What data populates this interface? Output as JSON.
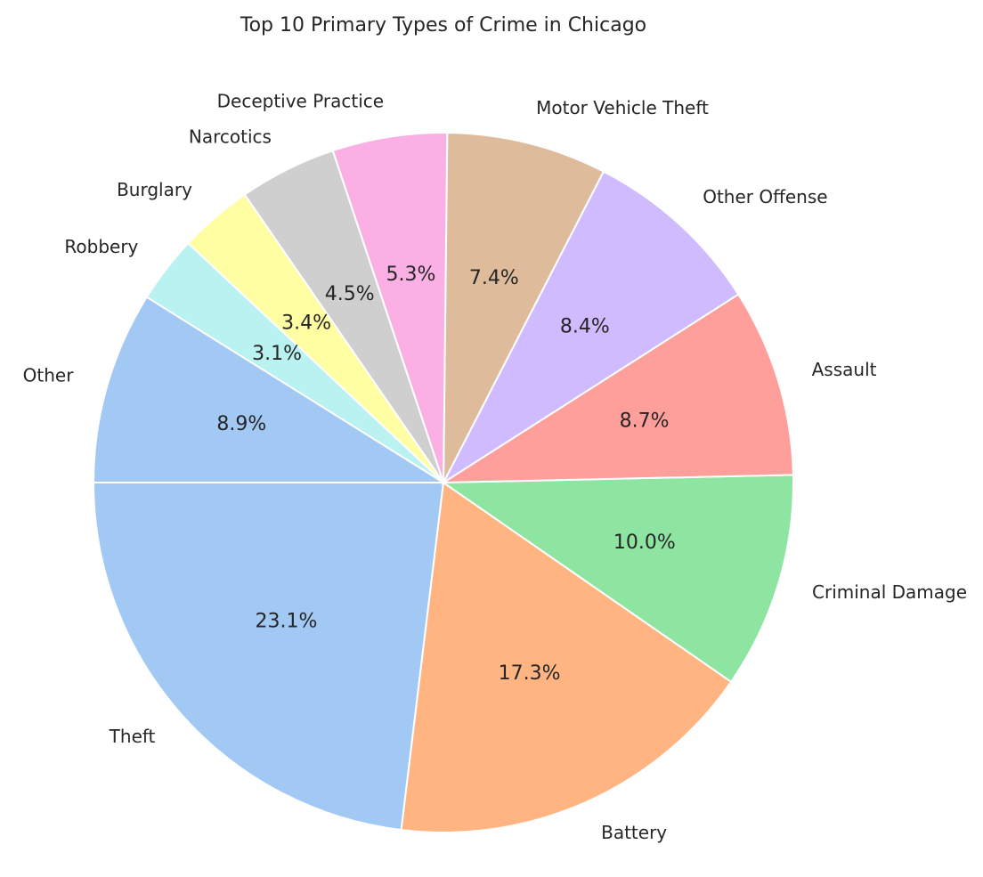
{
  "chart_data": {
    "type": "pie",
    "title": "Top 10 Primary Types of Crime in Chicago",
    "start_angle_deg": 180,
    "direction": "counterclockwise",
    "slices": [
      {
        "label": "Theft",
        "value": 23.1,
        "pct_label": "23.1%",
        "color": "#a1c9f4"
      },
      {
        "label": "Battery",
        "value": 17.3,
        "pct_label": "17.3%",
        "color": "#ffb482"
      },
      {
        "label": "Criminal Damage",
        "value": 10.0,
        "pct_label": "10.0%",
        "color": "#8de5a1"
      },
      {
        "label": "Assault",
        "value": 8.7,
        "pct_label": "8.7%",
        "color": "#ff9f9b"
      },
      {
        "label": "Other Offense",
        "value": 8.4,
        "pct_label": "8.4%",
        "color": "#d0bbff"
      },
      {
        "label": "Motor Vehicle Theft",
        "value": 7.4,
        "pct_label": "7.4%",
        "color": "#debb9b"
      },
      {
        "label": "Deceptive Practice",
        "value": 5.3,
        "pct_label": "5.3%",
        "color": "#fab0e4"
      },
      {
        "label": "Narcotics",
        "value": 4.5,
        "pct_label": "4.5%",
        "color": "#cfcfcf"
      },
      {
        "label": "Burglary",
        "value": 3.4,
        "pct_label": "3.4%",
        "color": "#fffea3"
      },
      {
        "label": "Robbery",
        "value": 3.1,
        "pct_label": "3.1%",
        "color": "#b9f2f0"
      },
      {
        "label": "Other",
        "value": 8.9,
        "pct_label": "8.9%",
        "color": "#a1c9f4"
      }
    ]
  }
}
